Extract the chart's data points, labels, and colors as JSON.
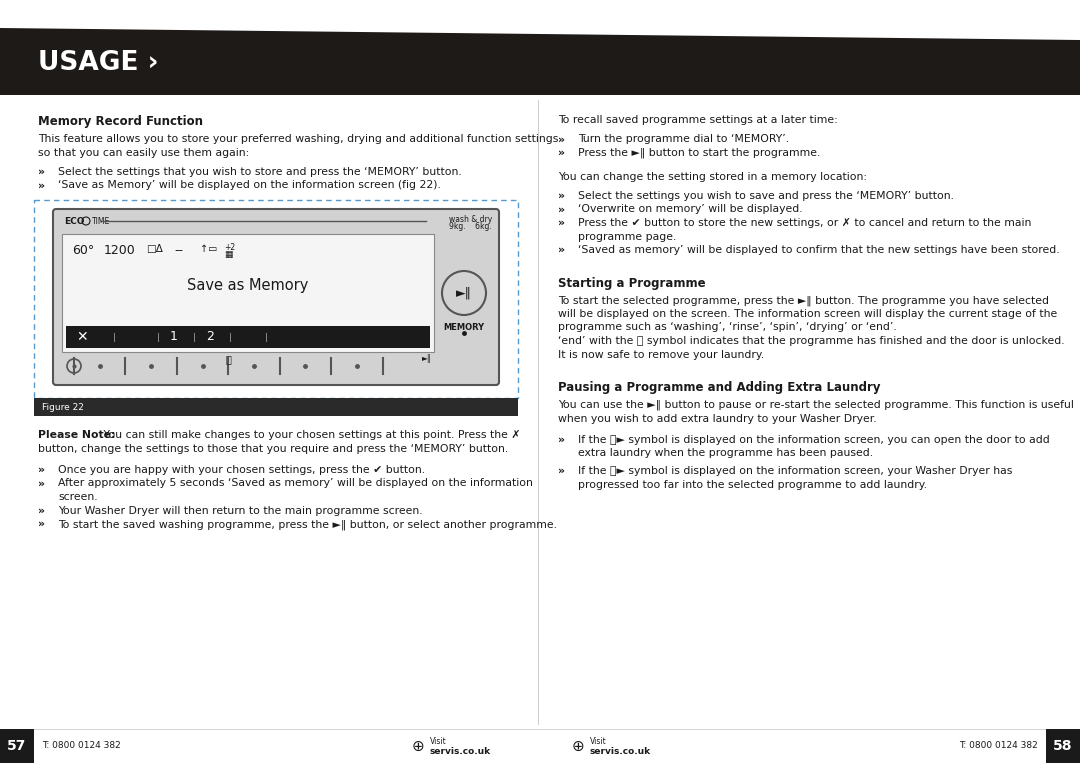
{
  "bg_color": "#ffffff",
  "header_bg": "#1e1a18",
  "header_text": "USAGE ›",
  "section1_title": "Memory Record Function",
  "section1_intro_line1": "This feature allows you to store your preferred washing, drying and additional function settings",
  "section1_intro_line2": "so that you can easily use them again:",
  "section1_bullets": [
    "Select the settings that you wish to store and press the ‘MEMORY’ button.",
    "‘Save as Memory’ will be displayed on the information screen (fig 22)."
  ],
  "please_note_bold": "Please Note:",
  "please_note_rest1": " You can still make changes to your chosen settings at this point. Press the ✗",
  "please_note_rest2": "button, change the settings to those that you require and press the ‘MEMORY’ button.",
  "section1_bullets2_line1": "Once you are happy with your chosen settings, press the ✔ button.",
  "section1_bullets2_line2a": "After approximately 5 seconds ‘Saved as memory’ will be displayed on the information",
  "section1_bullets2_line2b": "screen.",
  "section1_bullets2_line3": "Your Washer Dryer will then return to the main programme screen.",
  "section1_bullets2_line4": "To start the saved washing programme, press the ►‖ button, or select another programme.",
  "right_intro": "To recall saved programme settings at a later time:",
  "right_bullets1": [
    "Turn the programme dial to ‘MEMORY’.",
    "Press the ►‖ button to start the programme."
  ],
  "right_mid_text": "You can change the setting stored in a memory location:",
  "right_bullets2_l1": "Select the settings you wish to save and press the ‘MEMORY’ button.",
  "right_bullets2_l2": "‘Overwrite on memory’ will be displayed.",
  "right_bullets2_l3a": "Press the ✔ button to store the new settings, or ✗ to cancel and return to the main",
  "right_bullets2_l3b": "programme page.",
  "right_bullets2_l4": "‘Saved as memory’ will be displayed to confirm that the new settings have been stored.",
  "section2_title": "Starting a Programme",
  "section2_l1": "To start the selected programme, press the ►‖ button. The programme you have selected",
  "section2_l2": "will be displayed on the screen. The information screen will display the current stage of the",
  "section2_l3": "programme such as ‘washing’, ‘rinse’, ‘spin’, ‘drying’ or ‘end’.",
  "section2_l4": "‘end’ with the ⧗ symbol indicates that the programme has finished and the door is unlocked.",
  "section2_l5": "It is now safe to remove your laundry.",
  "section3_title": "Pausing a Programme and Adding Extra Laundry",
  "section3_l1": "You can use the ►‖ button to pause or re-start the selected programme. This function is useful",
  "section3_l2": "when you wish to add extra laundry to your Washer Dryer.",
  "section3_b1a": "If the ⧗► symbol is displayed on the information screen, you can open the door to add",
  "section3_b1b": "extra laundry when the programme has been paused.",
  "section3_b2a": "If the ⧗► symbol is displayed on the information screen, your Washer Dryer has",
  "section3_b2b": "progressed too far into the selected programme to add laundry.",
  "footer_left_page": "57",
  "footer_left_text": "T: 0800 0124 382",
  "footer_right_page": "58",
  "footer_right_text": "T: 0800 0124 382",
  "bullet_char": "»"
}
